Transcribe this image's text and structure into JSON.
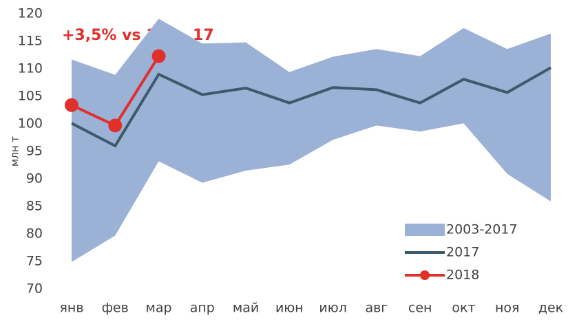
{
  "chart_data": {
    "type": "range-line",
    "y_label": "млн т",
    "annotation": "+3,5% vs 1 кв. 17",
    "categories": [
      "янв",
      "фев",
      "мар",
      "апр",
      "май",
      "июн",
      "июл",
      "авг",
      "сен",
      "окт",
      "ноя",
      "дек"
    ],
    "band": {
      "name": "2003-2017",
      "color": "#9bb2d6",
      "high": [
        111.7,
        108.9,
        119.1,
        114.6,
        114.8,
        109.4,
        112.2,
        113.6,
        112.3,
        117.4,
        113.6,
        116.4
      ],
      "low": [
        74.9,
        79.7,
        93.2,
        89.3,
        91.5,
        92.6,
        97.1,
        99.7,
        98.6,
        100.1,
        90.9,
        85.9
      ]
    },
    "series": [
      {
        "name": "2017",
        "color": "#3d5a6b",
        "values": [
          100.1,
          96.0,
          109.0,
          105.3,
          106.5,
          103.8,
          106.6,
          106.2,
          103.8,
          108.1,
          105.7,
          110.2
        ]
      },
      {
        "name": "2018",
        "color": "#e0302c",
        "markers": true,
        "values": [
          103.4,
          99.7,
          112.3,
          null,
          null,
          null,
          null,
          null,
          null,
          null,
          null,
          null
        ]
      }
    ],
    "ylim": [
      70,
      120
    ],
    "yticks": [
      70,
      75,
      80,
      85,
      90,
      95,
      100,
      105,
      110,
      115,
      120
    ],
    "grid": false,
    "legend": "lower right"
  }
}
